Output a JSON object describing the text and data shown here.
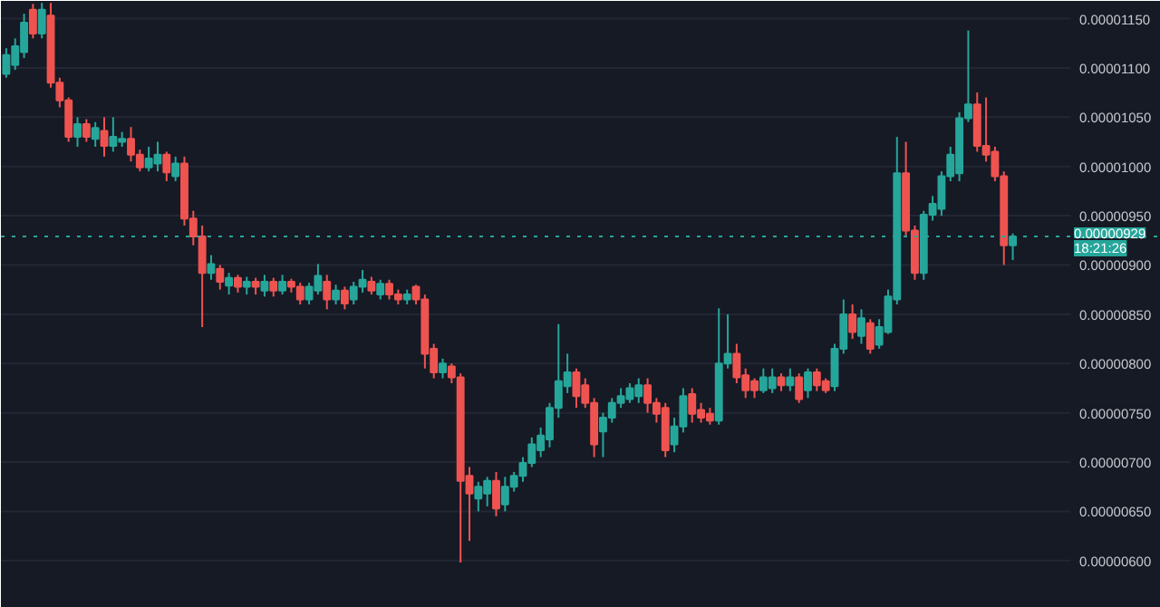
{
  "chart_data": {
    "type": "candlestick",
    "categories": [
      null,
      null,
      null,
      null,
      null,
      null,
      null,
      null,
      null,
      null,
      null,
      null,
      null,
      null,
      null,
      null,
      null,
      null,
      null,
      null,
      null,
      null,
      null,
      null,
      null,
      null,
      null,
      null,
      null,
      null,
      null,
      null,
      null,
      null,
      null,
      null,
      null,
      null,
      null,
      null,
      null,
      null,
      null,
      null,
      null,
      null,
      null,
      null,
      null,
      null,
      null,
      null,
      null,
      null,
      null,
      null,
      null,
      null,
      null,
      null,
      null,
      null,
      null,
      null,
      null,
      null,
      null,
      null,
      null,
      null,
      null,
      null,
      null,
      null,
      null,
      null,
      null,
      null,
      null,
      null,
      null,
      null,
      null,
      null,
      null,
      null,
      null,
      null,
      null,
      null,
      null,
      null,
      null,
      null,
      null,
      null,
      null,
      null,
      null,
      null,
      null,
      null,
      null,
      null,
      null,
      null,
      null,
      null,
      null,
      null,
      null,
      null,
      null,
      null
    ],
    "ohlc": [
      [
        1.094e-05,
        1.12e-05,
        1.09e-05,
        1.113e-05
      ],
      [
        1.103e-05,
        1.13e-05,
        1.098e-05,
        1.122e-05
      ],
      [
        1.116e-05,
        1.155e-05,
        1.11e-05,
        1.146e-05
      ],
      [
        1.159e-05,
        1.165e-05,
        1.13e-05,
        1.135e-05
      ],
      [
        1.135e-05,
        1.166e-05,
        1.13e-05,
        1.159e-05
      ],
      [
        1.153e-05,
        1.166e-05,
        1.08e-05,
        1.085e-05
      ],
      [
        1.085e-05,
        1.09e-05,
        1.06e-05,
        1.067e-05
      ],
      [
        1.067e-05,
        1.07e-05,
        1.025e-05,
        1.03e-05
      ],
      [
        1.03e-05,
        1.05e-05,
        1.02e-05,
        1.043e-05
      ],
      [
        1.043e-05,
        1.048e-05,
        1.025e-05,
        1.03e-05
      ],
      [
        1.028e-05,
        1.045e-05,
        1.02e-05,
        1.039e-05
      ],
      [
        1.036e-05,
        1.05e-05,
        1.01e-05,
        1.021e-05
      ],
      [
        1.021e-05,
        1.05e-05,
        1.015e-05,
        1.03e-05
      ],
      [
        1.025e-05,
        1.035e-05,
        1.02e-05,
        1.028e-05
      ],
      [
        1.028e-05,
        1.04e-05,
        1.005e-05,
        1.012e-05
      ],
      [
        1.012e-05,
        1.017e-05,
        9.95e-06,
        9.99e-06
      ],
      [
        9.99e-06,
        1.02e-05,
        9.95e-06,
        1.008e-05
      ],
      [
        1.003e-05,
        1.025e-05,
        9.95e-06,
        1.012e-05
      ],
      [
        1.012e-05,
        1.015e-05,
        9.85e-06,
        9.94e-06
      ],
      [
        9.9e-06,
        1.01e-05,
        9.85e-06,
        1.003e-05
      ],
      [
        1.003e-05,
        1.01e-05,
        9.4e-06,
        9.47e-06
      ],
      [
        9.47e-06,
        9.55e-06,
        9.2e-06,
        9.29e-06
      ],
      [
        9.29e-06,
        9.4e-06,
        8.37e-06,
        8.92e-06
      ],
      [
        8.92e-06,
        9.1e-06,
        8.85e-06,
        9.01e-06
      ],
      [
        8.96e-06,
        9e-06,
        8.75e-06,
        8.83e-06
      ],
      [
        8.79e-06,
        8.92e-06,
        8.7e-06,
        8.87e-06
      ],
      [
        8.87e-06,
        8.9e-06,
        8.72e-06,
        8.78e-06
      ],
      [
        8.78e-06,
        8.88e-06,
        8.7e-06,
        8.83e-06
      ],
      [
        8.83e-06,
        8.87e-06,
        8.7e-06,
        8.78e-06
      ],
      [
        8.74e-06,
        8.9e-06,
        8.68e-06,
        8.83e-06
      ],
      [
        8.83e-06,
        8.87e-06,
        8.68e-06,
        8.74e-06
      ],
      [
        8.74e-06,
        8.9e-06,
        8.7e-06,
        8.83e-06
      ],
      [
        8.83e-06,
        8.86e-06,
        8.72e-06,
        8.78e-06
      ],
      [
        8.78e-06,
        8.82e-06,
        8.6e-06,
        8.65e-06
      ],
      [
        8.65e-06,
        8.82e-06,
        8.6e-06,
        8.78e-06
      ],
      [
        8.74e-06,
        9.01e-06,
        8.7e-06,
        8.89e-06
      ],
      [
        8.83e-06,
        8.9e-06,
        8.55e-06,
        8.65e-06
      ],
      [
        8.65e-06,
        8.8e-06,
        8.6e-06,
        8.74e-06
      ],
      [
        8.74e-06,
        8.78e-06,
        8.55e-06,
        8.61e-06
      ],
      [
        8.65e-06,
        8.83e-06,
        8.6e-06,
        8.78e-06
      ],
      [
        8.78e-06,
        8.95e-06,
        8.72e-06,
        8.85e-06
      ],
      [
        8.83e-06,
        8.88e-06,
        8.7e-06,
        8.74e-06
      ],
      [
        8.7e-06,
        8.85e-06,
        8.65e-06,
        8.81e-06
      ],
      [
        8.81e-06,
        8.85e-06,
        8.65e-06,
        8.7e-06
      ],
      [
        8.7e-06,
        8.75e-06,
        8.6e-06,
        8.65e-06
      ],
      [
        8.65e-06,
        8.75e-06,
        8.6e-06,
        8.7e-06
      ],
      [
        8.78e-06,
        8.8e-06,
        8.6e-06,
        8.65e-06
      ],
      [
        8.65e-06,
        8.7e-06,
        7.95e-06,
        8.1e-06
      ],
      [
        8.15e-06,
        8.2e-06,
        7.85e-06,
        7.91e-06
      ],
      [
        7.91e-06,
        8.05e-06,
        7.85e-06,
        8e-06
      ],
      [
        7.97e-06,
        8e-06,
        7.8e-06,
        7.86e-06
      ],
      [
        7.86e-06,
        7.9e-06,
        5.98e-06,
        6.81e-06
      ],
      [
        6.86e-06,
        6.95e-06,
        6.2e-06,
        6.68e-06
      ],
      [
        6.63e-06,
        6.8e-06,
        6.5e-06,
        6.75e-06
      ],
      [
        6.68e-06,
        6.85e-06,
        6.55e-06,
        6.81e-06
      ],
      [
        6.81e-06,
        6.9e-06,
        6.45e-06,
        6.53e-06
      ],
      [
        6.57e-06,
        6.85e-06,
        6.5e-06,
        6.75e-06
      ],
      [
        6.75e-06,
        6.9e-06,
        6.7e-06,
        6.86e-06
      ],
      [
        6.86e-06,
        7.05e-06,
        6.8e-06,
        6.99e-06
      ],
      [
        6.99e-06,
        7.25e-06,
        6.95e-06,
        7.18e-06
      ],
      [
        7.12e-06,
        7.35e-06,
        7.05e-06,
        7.27e-06
      ],
      [
        7.23e-06,
        7.6e-06,
        7.15e-06,
        7.55e-06
      ],
      [
        7.55e-06,
        8.4e-06,
        7.45e-06,
        7.82e-06
      ],
      [
        7.77e-06,
        8.1e-06,
        7.7e-06,
        7.91e-06
      ],
      [
        7.91e-06,
        7.95e-06,
        7.55e-06,
        7.67e-06
      ],
      [
        7.78e-06,
        7.85e-06,
        7.55e-06,
        7.6e-06
      ],
      [
        7.6e-06,
        7.65e-06,
        7.05e-06,
        7.18e-06
      ],
      [
        7.31e-06,
        7.5e-06,
        7.05e-06,
        7.45e-06
      ],
      [
        7.45e-06,
        7.65e-06,
        7.4e-06,
        7.6e-06
      ],
      [
        7.6e-06,
        7.75e-06,
        7.55e-06,
        7.67e-06
      ],
      [
        7.64e-06,
        7.8e-06,
        7.6e-06,
        7.75e-06
      ],
      [
        7.67e-06,
        7.85e-06,
        7.6e-06,
        7.78e-06
      ],
      [
        7.78e-06,
        7.85e-06,
        7.5e-06,
        7.6e-06
      ],
      [
        7.6e-06,
        7.65e-06,
        7.4e-06,
        7.49e-06
      ],
      [
        7.55e-06,
        7.6e-06,
        7.05e-06,
        7.12e-06
      ],
      [
        7.18e-06,
        7.45e-06,
        7.1e-06,
        7.36e-06
      ],
      [
        7.36e-06,
        7.75e-06,
        7.3e-06,
        7.67e-06
      ],
      [
        7.69e-06,
        7.75e-06,
        7.4e-06,
        7.49e-06
      ],
      [
        7.53e-06,
        7.6e-06,
        7.4e-06,
        7.45e-06
      ],
      [
        7.49e-06,
        7.55e-06,
        7.38e-06,
        7.42e-06
      ],
      [
        7.42e-06,
        8.56e-06,
        7.38e-06,
        8e-06
      ],
      [
        8e-06,
        8.5e-06,
        7.95e-06,
        8.1e-06
      ],
      [
        8.1e-06,
        8.2e-06,
        7.8e-06,
        7.86e-06
      ],
      [
        7.88e-06,
        7.95e-06,
        7.65e-06,
        7.73e-06
      ],
      [
        7.82e-06,
        7.85e-06,
        7.65e-06,
        7.73e-06
      ],
      [
        7.73e-06,
        7.95e-06,
        7.7e-06,
        7.86e-06
      ],
      [
        7.75e-06,
        7.95e-06,
        7.7e-06,
        7.86e-06
      ],
      [
        7.86e-06,
        7.9e-06,
        7.72e-06,
        7.78e-06
      ],
      [
        7.78e-06,
        7.95e-06,
        7.72e-06,
        7.86e-06
      ],
      [
        7.86e-06,
        7.9e-06,
        7.6e-06,
        7.64e-06
      ],
      [
        7.73e-06,
        7.95e-06,
        7.65e-06,
        7.91e-06
      ],
      [
        7.91e-06,
        7.95e-06,
        7.72e-06,
        7.78e-06
      ],
      [
        7.82e-06,
        7.85e-06,
        7.7e-06,
        7.73e-06
      ],
      [
        7.77e-06,
        8.2e-06,
        7.72e-06,
        8.15e-06
      ],
      [
        8.15e-06,
        8.65e-06,
        8.1e-06,
        8.5e-06
      ],
      [
        8.5e-06,
        8.6e-06,
        8.25e-06,
        8.32e-06
      ],
      [
        8.28e-06,
        8.55e-06,
        8.2e-06,
        8.46e-06
      ],
      [
        8.41e-06,
        8.45e-06,
        8.1e-06,
        8.15e-06
      ],
      [
        8.19e-06,
        8.45e-06,
        8.15e-06,
        8.37e-06
      ],
      [
        8.32e-06,
        8.75e-06,
        8.3e-06,
        8.68e-06
      ],
      [
        8.65e-06,
        1.03e-05,
        8.6e-06,
        9.93e-06
      ],
      [
        9.93e-06,
        1.025e-05,
        9.3e-06,
        9.35e-06
      ],
      [
        9.35e-06,
        9.4e-06,
        8.85e-06,
        8.92e-06
      ],
      [
        8.92e-06,
        9.55e-06,
        8.85e-06,
        9.51e-06
      ],
      [
        9.51e-06,
        9.7e-06,
        9.45e-06,
        9.62e-06
      ],
      [
        9.57e-06,
        9.95e-06,
        9.5e-06,
        9.9e-06
      ],
      [
        9.9e-06,
        1.02e-05,
        9.85e-06,
        1.012e-05
      ],
      [
        9.93e-06,
        1.055e-05,
        9.85e-06,
        1.049e-05
      ],
      [
        1.049e-05,
        1.138e-05,
        1.045e-05,
        1.063e-05
      ],
      [
        1.063e-05,
        1.075e-05,
        1.015e-05,
        1.021e-05
      ],
      [
        1.021e-05,
        1.07e-05,
        1.005e-05,
        1.012e-05
      ],
      [
        1.015e-05,
        1.02e-05,
        9.85e-06,
        9.9e-06
      ],
      [
        9.9e-06,
        9.95e-06,
        9e-06,
        9.2e-06
      ],
      [
        9.2e-06,
        9.32e-06,
        9.05e-06,
        9.29e-06
      ]
    ],
    "colors": [
      "#26a69a",
      "#26a69a",
      "#26a69a",
      "#ef5350",
      "#26a69a",
      "#ef5350",
      "#ef5350",
      "#ef5350",
      "#26a69a",
      "#ef5350",
      "#26a69a",
      "#ef5350",
      "#26a69a",
      "#26a69a",
      "#ef5350",
      "#ef5350",
      "#26a69a",
      "#26a69a",
      "#ef5350",
      "#26a69a",
      "#ef5350",
      "#ef5350",
      "#ef5350",
      "#26a69a",
      "#ef5350",
      "#26a69a",
      "#ef5350",
      "#26a69a",
      "#ef5350",
      "#26a69a",
      "#ef5350",
      "#26a69a",
      "#ef5350",
      "#ef5350",
      "#26a69a",
      "#26a69a",
      "#ef5350",
      "#26a69a",
      "#ef5350",
      "#26a69a",
      "#26a69a",
      "#ef5350",
      "#26a69a",
      "#ef5350",
      "#ef5350",
      "#26a69a",
      "#ef5350",
      "#ef5350",
      "#ef5350",
      "#26a69a",
      "#ef5350",
      "#ef5350",
      "#ef5350",
      "#26a69a",
      "#26a69a",
      "#ef5350",
      "#26a69a",
      "#26a69a",
      "#26a69a",
      "#26a69a",
      "#26a69a",
      "#26a69a",
      "#26a69a",
      "#26a69a",
      "#ef5350",
      "#ef5350",
      "#ef5350",
      "#26a69a",
      "#26a69a",
      "#26a69a",
      "#26a69a",
      "#26a69a",
      "#ef5350",
      "#ef5350",
      "#ef5350",
      "#26a69a",
      "#26a69a",
      "#ef5350",
      "#ef5350",
      "#ef5350",
      "#26a69a",
      "#26a69a",
      "#ef5350",
      "#ef5350",
      "#ef5350",
      "#26a69a",
      "#26a69a",
      "#ef5350",
      "#26a69a",
      "#ef5350",
      "#26a69a",
      "#ef5350",
      "#ef5350",
      "#26a69a",
      "#26a69a",
      "#ef5350",
      "#26a69a",
      "#ef5350",
      "#26a69a",
      "#26a69a",
      "#26a69a",
      "#ef5350",
      "#ef5350",
      "#26a69a",
      "#26a69a",
      "#26a69a",
      "#26a69a",
      "#26a69a",
      "#26a69a",
      "#ef5350",
      "#ef5350",
      "#ef5350",
      "#ef5350",
      "#26a69a"
    ],
    "ylim": [
      5.52e-06,
      1.168e-05
    ],
    "yticks": [
      {
        "value": 6e-06,
        "label": "0.00000600"
      },
      {
        "value": 6.5e-06,
        "label": "0.00000650"
      },
      {
        "value": 7e-06,
        "label": "0.00000700"
      },
      {
        "value": 7.5e-06,
        "label": "0.00000750"
      },
      {
        "value": 8e-06,
        "label": "0.00000800"
      },
      {
        "value": 8.5e-06,
        "label": "0.00000850"
      },
      {
        "value": 9e-06,
        "label": "0.00000900"
      },
      {
        "value": 9.5e-06,
        "label": "0.00000950"
      },
      {
        "value": 1e-05,
        "label": "0.00001000"
      },
      {
        "value": 1.05e-05,
        "label": "0.00001050"
      },
      {
        "value": 1.1e-05,
        "label": "0.00001100"
      },
      {
        "value": 1.15e-05,
        "label": "0.00001150"
      }
    ],
    "tick_labels": "y",
    "grid": "y",
    "ref_lines": [
      {
        "axis": "y",
        "value": 9.29e-06,
        "label": "0.00000929",
        "color": "#26a69a",
        "line_style": "dotted"
      }
    ],
    "annotations": [
      "18:21:26"
    ]
  }
}
